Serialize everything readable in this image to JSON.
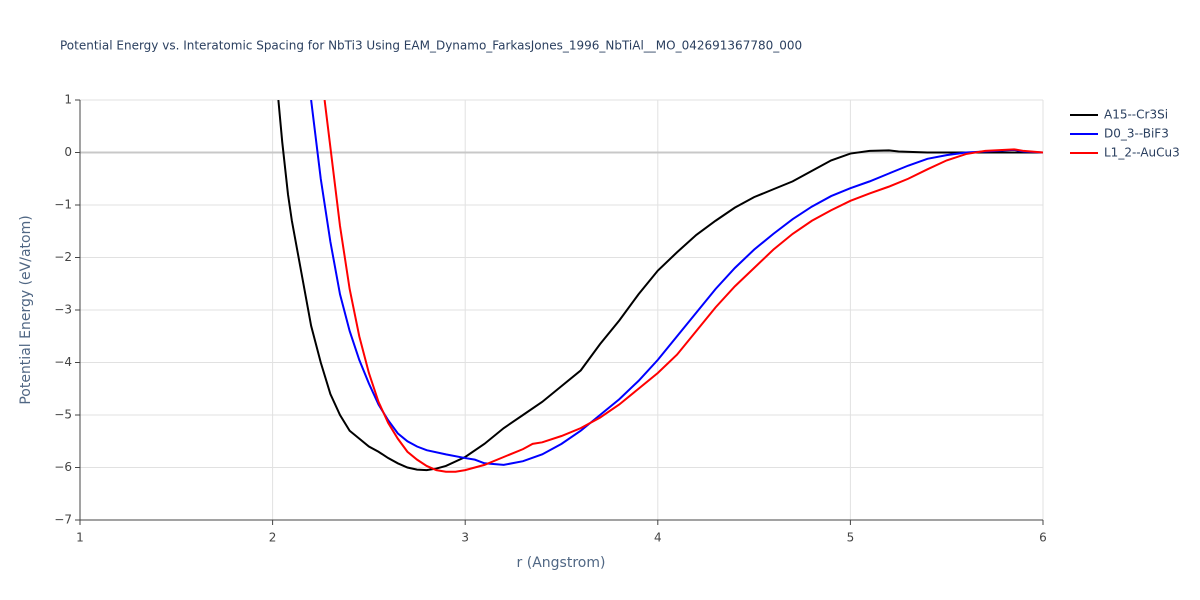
{
  "chart_data": {
    "type": "line",
    "title": "Potential Energy vs. Interatomic Spacing for NbTi3 Using EAM_Dynamo_FarkasJones_1996_NbTiAl__MO_042691367780_000",
    "x_label": "r (Angstrom)",
    "y_label": "Potential Energy (eV/atom)",
    "xlim": [
      1,
      6
    ],
    "ylim": [
      -7,
      1
    ],
    "xticks": [
      1,
      2,
      3,
      4,
      5,
      6
    ],
    "yticks": [
      1,
      0,
      {
        "value": -1,
        "label": "−1"
      },
      {
        "value": -2,
        "label": "−2"
      },
      {
        "value": -3,
        "label": "−3"
      },
      {
        "value": -4,
        "label": "−4"
      },
      {
        "value": -5,
        "label": "−5"
      },
      {
        "value": -6,
        "label": "−6"
      },
      {
        "value": -7,
        "label": "−7"
      }
    ],
    "grid": true,
    "legend": "right",
    "series": [
      {
        "name": "A15--Cr3Si",
        "color": "#000000",
        "x": [
          2.03,
          2.05,
          2.08,
          2.1,
          2.15,
          2.2,
          2.25,
          2.3,
          2.35,
          2.4,
          2.45,
          2.5,
          2.55,
          2.6,
          2.65,
          2.7,
          2.75,
          2.8,
          2.85,
          2.9,
          3.0,
          3.1,
          3.2,
          3.3,
          3.4,
          3.5,
          3.6,
          3.65,
          3.7,
          3.8,
          3.9,
          4.0,
          4.1,
          4.2,
          4.3,
          4.4,
          4.5,
          4.6,
          4.7,
          4.8,
          4.9,
          5.0,
          5.1,
          5.2,
          5.25,
          5.4,
          5.6,
          6.0
        ],
        "values": [
          1.0,
          0.2,
          -0.8,
          -1.3,
          -2.3,
          -3.3,
          -4.0,
          -4.6,
          -5.0,
          -5.3,
          -5.45,
          -5.6,
          -5.7,
          -5.82,
          -5.92,
          -6.0,
          -6.04,
          -6.05,
          -6.02,
          -5.97,
          -5.8,
          -5.55,
          -5.25,
          -5.0,
          -4.75,
          -4.45,
          -4.15,
          -3.9,
          -3.65,
          -3.2,
          -2.7,
          -2.25,
          -1.9,
          -1.57,
          -1.3,
          -1.05,
          -0.85,
          -0.7,
          -0.55,
          -0.35,
          -0.15,
          -0.02,
          0.03,
          0.04,
          0.02,
          0.0,
          0.0,
          0.0
        ]
      },
      {
        "name": "D0_3--BiF3",
        "color": "#0000ff",
        "x": [
          2.2,
          2.25,
          2.3,
          2.35,
          2.4,
          2.45,
          2.5,
          2.55,
          2.6,
          2.65,
          2.7,
          2.75,
          2.8,
          2.9,
          3.0,
          3.05,
          3.1,
          3.2,
          3.3,
          3.4,
          3.5,
          3.6,
          3.7,
          3.8,
          3.9,
          4.0,
          4.1,
          4.2,
          4.3,
          4.4,
          4.5,
          4.6,
          4.7,
          4.8,
          4.9,
          5.0,
          5.1,
          5.2,
          5.3,
          5.4,
          5.5,
          5.6,
          5.7,
          5.8,
          5.85,
          5.9,
          6.0
        ],
        "values": [
          1.0,
          -0.5,
          -1.7,
          -2.7,
          -3.4,
          -3.95,
          -4.4,
          -4.8,
          -5.1,
          -5.35,
          -5.5,
          -5.6,
          -5.67,
          -5.75,
          -5.82,
          -5.85,
          -5.92,
          -5.95,
          -5.88,
          -5.75,
          -5.55,
          -5.3,
          -5.0,
          -4.7,
          -4.35,
          -3.95,
          -3.5,
          -3.05,
          -2.6,
          -2.2,
          -1.85,
          -1.55,
          -1.27,
          -1.03,
          -0.83,
          -0.68,
          -0.55,
          -0.4,
          -0.25,
          -0.12,
          -0.05,
          0.0,
          0.02,
          0.04,
          0.05,
          0.02,
          0.0
        ]
      },
      {
        "name": "L1_2--AuCu3",
        "color": "#ff0000",
        "x": [
          2.27,
          2.3,
          2.35,
          2.4,
          2.45,
          2.5,
          2.55,
          2.6,
          2.65,
          2.7,
          2.75,
          2.8,
          2.85,
          2.9,
          2.95,
          3.0,
          3.1,
          3.2,
          3.3,
          3.35,
          3.4,
          3.5,
          3.6,
          3.7,
          3.8,
          3.9,
          4.0,
          4.1,
          4.2,
          4.3,
          4.4,
          4.5,
          4.6,
          4.7,
          4.8,
          4.9,
          5.0,
          5.1,
          5.2,
          5.3,
          5.4,
          5.5,
          5.6,
          5.7,
          5.8,
          5.85,
          5.9,
          6.0
        ],
        "values": [
          1.0,
          0.1,
          -1.4,
          -2.6,
          -3.5,
          -4.2,
          -4.75,
          -5.15,
          -5.45,
          -5.7,
          -5.85,
          -5.97,
          -6.05,
          -6.08,
          -6.08,
          -6.05,
          -5.95,
          -5.8,
          -5.65,
          -5.55,
          -5.52,
          -5.4,
          -5.25,
          -5.05,
          -4.8,
          -4.5,
          -4.2,
          -3.85,
          -3.4,
          -2.95,
          -2.55,
          -2.2,
          -1.85,
          -1.55,
          -1.3,
          -1.1,
          -0.92,
          -0.78,
          -0.65,
          -0.5,
          -0.32,
          -0.15,
          -0.03,
          0.03,
          0.05,
          0.06,
          0.03,
          0.0
        ]
      }
    ]
  }
}
